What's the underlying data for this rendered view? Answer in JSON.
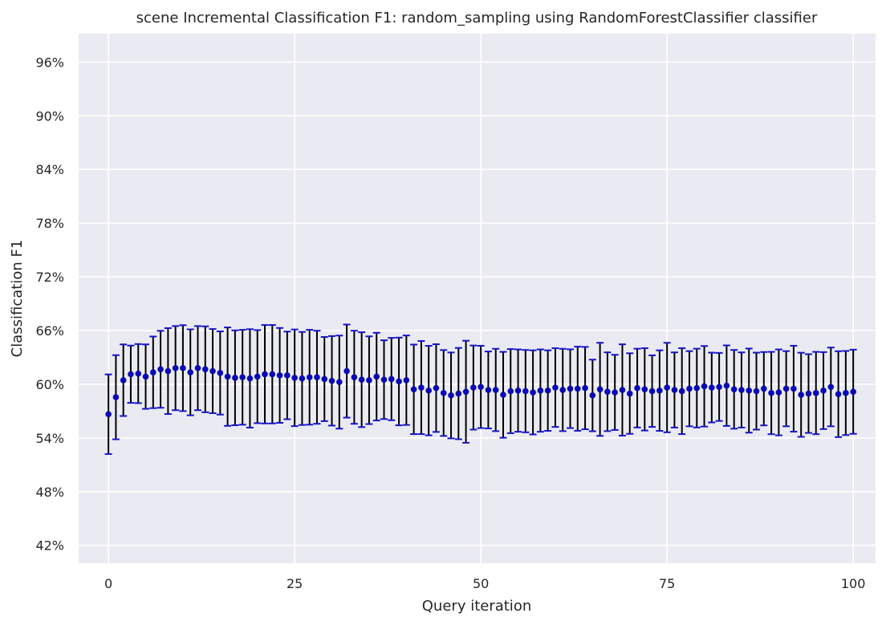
{
  "chart_data": {
    "type": "scatter",
    "title": "scene Incremental Classification F1: random_sampling using RandomForestClassifier classifier",
    "xlabel": "Query iteration",
    "ylabel": "Classification F1",
    "xlim": [
      -4,
      103
    ],
    "ylim": [
      0.4,
      0.9917
    ],
    "xticks": [
      0,
      25,
      50,
      75,
      100
    ],
    "xtick_labels": [
      "0",
      "25",
      "50",
      "75",
      "100"
    ],
    "yticks": [
      0.42,
      0.48,
      0.54,
      0.6,
      0.66,
      0.72,
      0.78,
      0.84,
      0.9,
      0.96
    ],
    "ytick_labels": [
      "42%",
      "48%",
      "54%",
      "60%",
      "66%",
      "72%",
      "78%",
      "84%",
      "90%",
      "96%"
    ],
    "grid": true,
    "background": "#eaeaf2",
    "grid_color": "#ffffff",
    "marker_color": "#0a0ab4",
    "errorbar_color": "#000000",
    "cap_color": "#1414c8",
    "x": [
      0,
      1,
      2,
      3,
      4,
      5,
      6,
      7,
      8,
      9,
      10,
      11,
      12,
      13,
      14,
      15,
      16,
      17,
      18,
      19,
      20,
      21,
      22,
      23,
      24,
      25,
      26,
      27,
      28,
      29,
      30,
      31,
      32,
      33,
      34,
      35,
      36,
      37,
      38,
      39,
      40,
      41,
      42,
      43,
      44,
      45,
      46,
      47,
      48,
      49,
      50,
      51,
      52,
      53,
      54,
      55,
      56,
      57,
      58,
      59,
      60,
      61,
      62,
      63,
      64,
      65,
      66,
      67,
      68,
      69,
      70,
      71,
      72,
      73,
      74,
      75,
      76,
      77,
      78,
      79,
      80,
      81,
      82,
      83,
      84,
      85,
      86,
      87,
      88,
      89,
      90,
      91,
      92,
      93,
      94,
      95,
      96,
      97,
      98,
      99,
      100
    ],
    "y": [
      0.5665,
      0.5855,
      0.6045,
      0.6112,
      0.6119,
      0.6085,
      0.6133,
      0.6167,
      0.6147,
      0.618,
      0.618,
      0.6133,
      0.618,
      0.6167,
      0.6147,
      0.6126,
      0.6085,
      0.6072,
      0.6078,
      0.6065,
      0.6085,
      0.6112,
      0.6112,
      0.6099,
      0.6099,
      0.6072,
      0.6065,
      0.6078,
      0.6078,
      0.6058,
      0.6038,
      0.6024,
      0.6147,
      0.6078,
      0.6051,
      0.6045,
      0.6085,
      0.6051,
      0.6058,
      0.6031,
      0.6045,
      0.5943,
      0.5963,
      0.5929,
      0.5957,
      0.5902,
      0.5875,
      0.5896,
      0.5916,
      0.5963,
      0.597,
      0.5936,
      0.5936,
      0.5882,
      0.5923,
      0.5929,
      0.5923,
      0.5909,
      0.5929,
      0.5929,
      0.5963,
      0.5936,
      0.595,
      0.595,
      0.5957,
      0.5875,
      0.5943,
      0.5916,
      0.5909,
      0.5936,
      0.5896,
      0.5957,
      0.5943,
      0.5923,
      0.5929,
      0.5963,
      0.5936,
      0.5923,
      0.595,
      0.5957,
      0.5977,
      0.5963,
      0.597,
      0.5984,
      0.5943,
      0.5936,
      0.5929,
      0.5923,
      0.595,
      0.5902,
      0.5909,
      0.595,
      0.595,
      0.5882,
      0.5896,
      0.5902,
      0.5929,
      0.597,
      0.5889,
      0.5902,
      0.5916
    ],
    "yerr": [
      0.0445,
      0.047,
      0.04,
      0.032,
      0.033,
      0.036,
      0.04,
      0.043,
      0.048,
      0.047,
      0.048,
      0.048,
      0.047,
      0.048,
      0.047,
      0.0465,
      0.055,
      0.053,
      0.053,
      0.055,
      0.052,
      0.055,
      0.055,
      0.053,
      0.049,
      0.054,
      0.052,
      0.053,
      0.052,
      0.047,
      0.05,
      0.052,
      0.052,
      0.052,
      0.053,
      0.049,
      0.049,
      0.044,
      0.046,
      0.049,
      0.05,
      0.05,
      0.052,
      0.05,
      0.049,
      0.048,
      0.048,
      0.051,
      0.057,
      0.047,
      0.046,
      0.043,
      0.046,
      0.048,
      0.047,
      0.046,
      0.046,
      0.047,
      0.046,
      0.045,
      0.044,
      0.046,
      0.044,
      0.047,
      0.046,
      0.04,
      0.052,
      0.044,
      0.042,
      0.051,
      0.045,
      0.044,
      0.046,
      0.04,
      0.045,
      0.05,
      0.042,
      0.048,
      0.042,
      0.044,
      0.045,
      0.039,
      0.038,
      0.045,
      0.044,
      0.042,
      0.047,
      0.043,
      0.041,
      0.046,
      0.048,
      0.042,
      0.048,
      0.047,
      0.044,
      0.046,
      0.043,
      0.044,
      0.048,
      0.047,
      0.047
    ]
  }
}
